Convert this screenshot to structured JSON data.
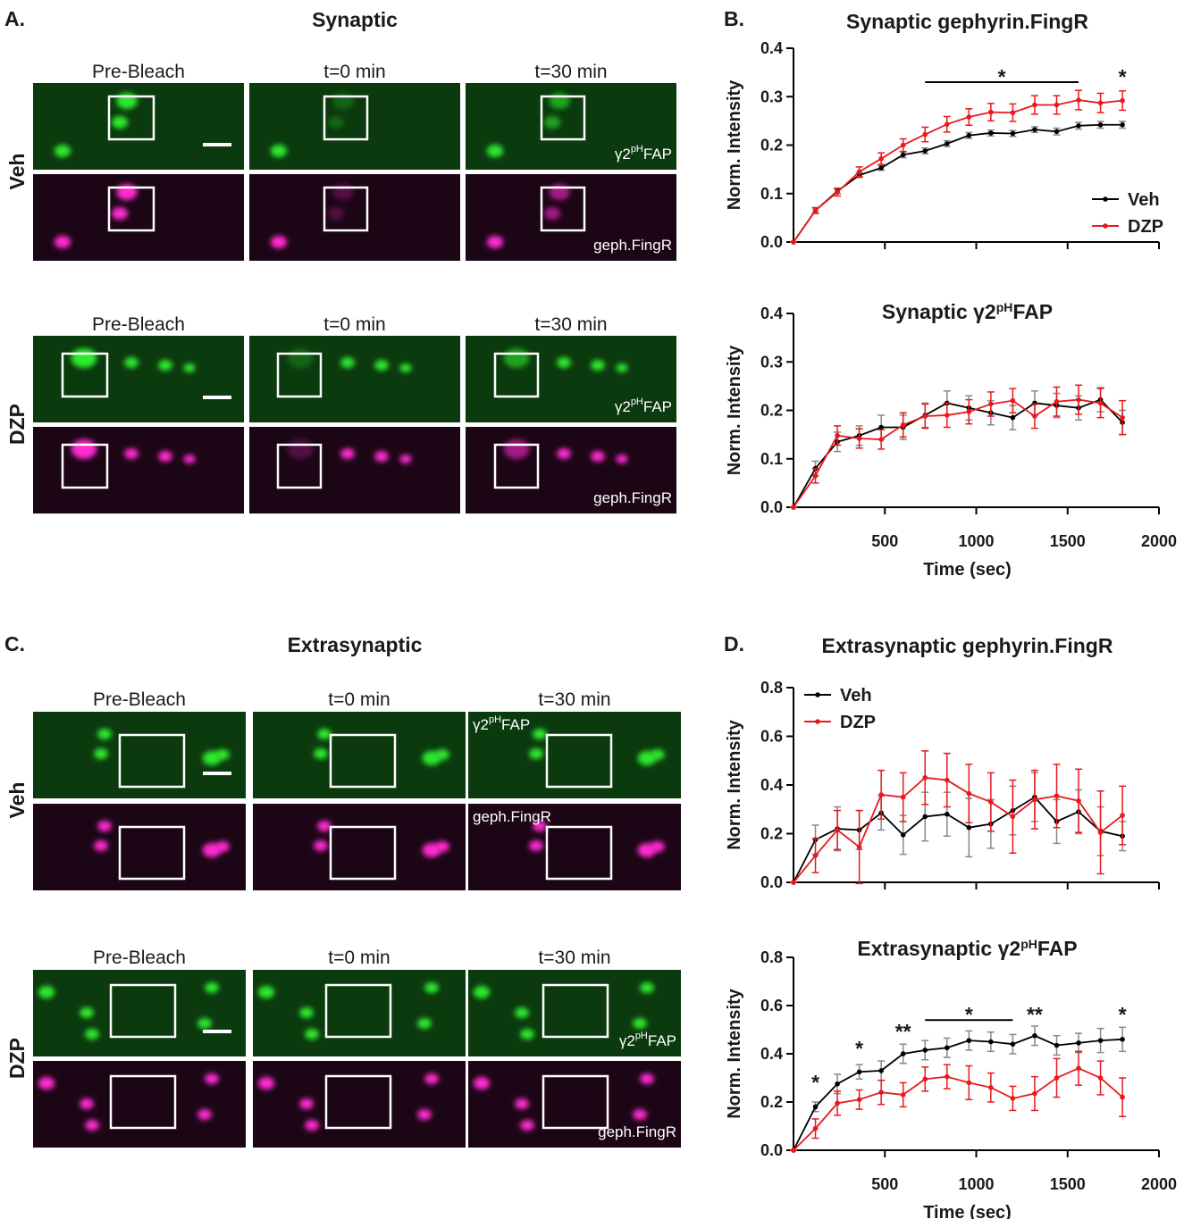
{
  "figure": {
    "panels": [
      {
        "letter": "A.",
        "title": "Synaptic",
        "columns": [
          "Pre-Bleach",
          "t=0 min",
          "t=30 min"
        ],
        "rows": [
          "Veh",
          "DZP"
        ],
        "channels": [
          [
            "γ2",
            "pH",
            "FAP"
          ],
          "geph.FingR"
        ]
      },
      {
        "letter": "C.",
        "title": "Extrasynaptic",
        "columns": [
          "Pre-Bleach",
          "t=0 min",
          "t=30 min"
        ],
        "rows": [
          "Veh",
          "DZP"
        ],
        "channels": [
          [
            "γ2",
            "pH",
            "FAP"
          ],
          "geph.FingR"
        ]
      }
    ]
  },
  "chart_data": [
    {
      "type": "line",
      "panel_label": "B.",
      "title": [
        "Synaptic gephyrin.FingR"
      ],
      "ylabel": "Norm. Intensity",
      "x": [
        0,
        120,
        240,
        360,
        480,
        600,
        720,
        840,
        960,
        1080,
        1200,
        1320,
        1440,
        1560,
        1680,
        1800
      ],
      "series": [
        {
          "name": "Veh",
          "color": "#000000",
          "values": [
            0,
            0.065,
            0.105,
            0.138,
            0.153,
            0.18,
            0.188,
            0.203,
            0.22,
            0.225,
            0.224,
            0.232,
            0.228,
            0.24,
            0.242,
            0.242
          ],
          "errors": [
            0,
            0.005,
            0.005,
            0.005,
            0.005,
            0.006,
            0.006,
            0.006,
            0.006,
            0.006,
            0.006,
            0.006,
            0.007,
            0.007,
            0.007,
            0.007
          ]
        },
        {
          "name": "DZP",
          "color": "#e8191c",
          "values": [
            0,
            0.065,
            0.103,
            0.145,
            0.172,
            0.2,
            0.222,
            0.243,
            0.258,
            0.268,
            0.267,
            0.283,
            0.283,
            0.293,
            0.287,
            0.292
          ],
          "errors": [
            0,
            0.006,
            0.008,
            0.01,
            0.012,
            0.013,
            0.015,
            0.016,
            0.017,
            0.018,
            0.018,
            0.019,
            0.019,
            0.02,
            0.02,
            0.02
          ]
        }
      ],
      "xlim": [
        0,
        2000
      ],
      "xticks": [
        500,
        1000,
        1500,
        2000
      ],
      "show_xtick_labels": false,
      "ylim": [
        0,
        0.4
      ],
      "yticks": [
        {
          "value": 0,
          "label": "0.0"
        },
        0.1,
        0.2,
        0.3,
        0.4
      ],
      "legend": "lower right",
      "annotations": [
        {
          "text": "*",
          "x": [
            720,
            1560
          ],
          "y": 0.33
        },
        {
          "text": "*",
          "x": 1800,
          "y": 0.33
        }
      ]
    },
    {
      "type": "line",
      "title": [
        "Synaptic γ2",
        "pH",
        "FAP"
      ],
      "ylabel": "Norm. Intensity",
      "xlabel": "Time (sec)",
      "x": [
        0,
        120,
        240,
        360,
        480,
        600,
        720,
        840,
        960,
        1080,
        1200,
        1320,
        1440,
        1560,
        1680,
        1800
      ],
      "series": [
        {
          "name": "Veh",
          "color": "#000000",
          "values": [
            0,
            0.08,
            0.135,
            0.148,
            0.165,
            0.165,
            0.19,
            0.215,
            0.205,
            0.195,
            0.185,
            0.215,
            0.21,
            0.205,
            0.222,
            0.175
          ],
          "errors": [
            0,
            0.015,
            0.02,
            0.02,
            0.025,
            0.025,
            0.025,
            0.025,
            0.025,
            0.025,
            0.025,
            0.025,
            0.025,
            0.025,
            0.025,
            0.025
          ]
        },
        {
          "name": "DZP",
          "color": "#e8191c",
          "values": [
            0,
            0.065,
            0.148,
            0.142,
            0.14,
            0.17,
            0.188,
            0.19,
            0.197,
            0.213,
            0.22,
            0.188,
            0.218,
            0.222,
            0.215,
            0.185
          ],
          "errors": [
            0,
            0.015,
            0.02,
            0.02,
            0.02,
            0.025,
            0.025,
            0.025,
            0.025,
            0.025,
            0.025,
            0.025,
            0.03,
            0.03,
            0.03,
            0.035
          ]
        }
      ],
      "xlim": [
        0,
        2000
      ],
      "xticks": [
        500,
        1000,
        1500,
        2000
      ],
      "show_xtick_labels": true,
      "ylim": [
        0,
        0.4
      ],
      "yticks": [
        {
          "value": 0,
          "label": "0.0"
        },
        0.1,
        0.2,
        0.3,
        0.4
      ]
    },
    {
      "type": "line",
      "panel_label": "D.",
      "title": [
        "Extrasynaptic gephyrin.FingR"
      ],
      "ylabel": "Norm. Intensity",
      "x": [
        0,
        120,
        240,
        360,
        480,
        600,
        720,
        840,
        960,
        1080,
        1200,
        1320,
        1440,
        1560,
        1680,
        1800
      ],
      "series": [
        {
          "name": "Veh",
          "color": "#000000",
          "values": [
            0,
            0.175,
            0.22,
            0.215,
            0.285,
            0.195,
            0.27,
            0.28,
            0.225,
            0.24,
            0.295,
            0.35,
            0.25,
            0.29,
            0.21,
            0.19
          ],
          "errors": [
            0,
            0.06,
            0.09,
            0.08,
            0.07,
            0.08,
            0.1,
            0.09,
            0.12,
            0.1,
            0.1,
            0.1,
            0.09,
            0.09,
            0.1,
            0.06
          ]
        },
        {
          "name": "DZP",
          "color": "#e8191c",
          "values": [
            0,
            0.11,
            0.215,
            0.145,
            0.36,
            0.35,
            0.43,
            0.42,
            0.365,
            0.33,
            0.27,
            0.34,
            0.355,
            0.335,
            0.205,
            0.275
          ],
          "errors": [
            0,
            0.07,
            0.08,
            0.15,
            0.1,
            0.1,
            0.11,
            0.11,
            0.12,
            0.12,
            0.15,
            0.12,
            0.13,
            0.13,
            0.17,
            0.12
          ]
        }
      ],
      "xlim": [
        0,
        2000
      ],
      "xticks": [
        500,
        1000,
        1500,
        2000
      ],
      "show_xtick_labels": false,
      "ylim": [
        0,
        0.8
      ],
      "yticks": [
        {
          "value": 0,
          "label": "0.0"
        },
        0.2,
        0.4,
        0.6,
        0.8
      ],
      "legend": "upper left"
    },
    {
      "type": "line",
      "title": [
        "Extrasynaptic γ2",
        "pH",
        "FAP"
      ],
      "ylabel": "Norm. Intensity",
      "xlabel": "Time (sec)",
      "x": [
        0,
        120,
        240,
        360,
        480,
        600,
        720,
        840,
        960,
        1080,
        1200,
        1320,
        1440,
        1560,
        1680,
        1800
      ],
      "series": [
        {
          "name": "Veh",
          "color": "#000000",
          "values": [
            0,
            0.18,
            0.275,
            0.325,
            0.33,
            0.4,
            0.415,
            0.425,
            0.455,
            0.45,
            0.44,
            0.475,
            0.435,
            0.445,
            0.455,
            0.46
          ],
          "errors": [
            0,
            0.02,
            0.04,
            0.03,
            0.04,
            0.04,
            0.04,
            0.04,
            0.04,
            0.04,
            0.04,
            0.04,
            0.04,
            0.04,
            0.05,
            0.05
          ]
        },
        {
          "name": "DZP",
          "color": "#e8191c",
          "values": [
            0,
            0.09,
            0.195,
            0.21,
            0.24,
            0.23,
            0.295,
            0.305,
            0.28,
            0.26,
            0.215,
            0.235,
            0.3,
            0.34,
            0.3,
            0.22
          ],
          "errors": [
            0,
            0.04,
            0.05,
            0.04,
            0.05,
            0.05,
            0.05,
            0.05,
            0.07,
            0.06,
            0.05,
            0.07,
            0.08,
            0.07,
            0.07,
            0.08
          ]
        }
      ],
      "xlim": [
        0,
        2000
      ],
      "xticks": [
        500,
        1000,
        1500,
        2000
      ],
      "show_xtick_labels": true,
      "ylim": [
        0,
        0.8
      ],
      "yticks": [
        {
          "value": 0,
          "label": "0.0"
        },
        0.2,
        0.4,
        0.6,
        0.8
      ],
      "annotations": [
        {
          "text": "*",
          "x": 120,
          "y": 0.26
        },
        {
          "text": "*",
          "x": 360,
          "y": 0.4
        },
        {
          "text": "**",
          "x": 600,
          "y": 0.47
        },
        {
          "text": "*",
          "x": [
            720,
            1200
          ],
          "y": 0.54
        },
        {
          "text": "**",
          "x": 1320,
          "y": 0.54
        },
        {
          "text": "*",
          "x": 1800,
          "y": 0.54
        }
      ]
    }
  ]
}
